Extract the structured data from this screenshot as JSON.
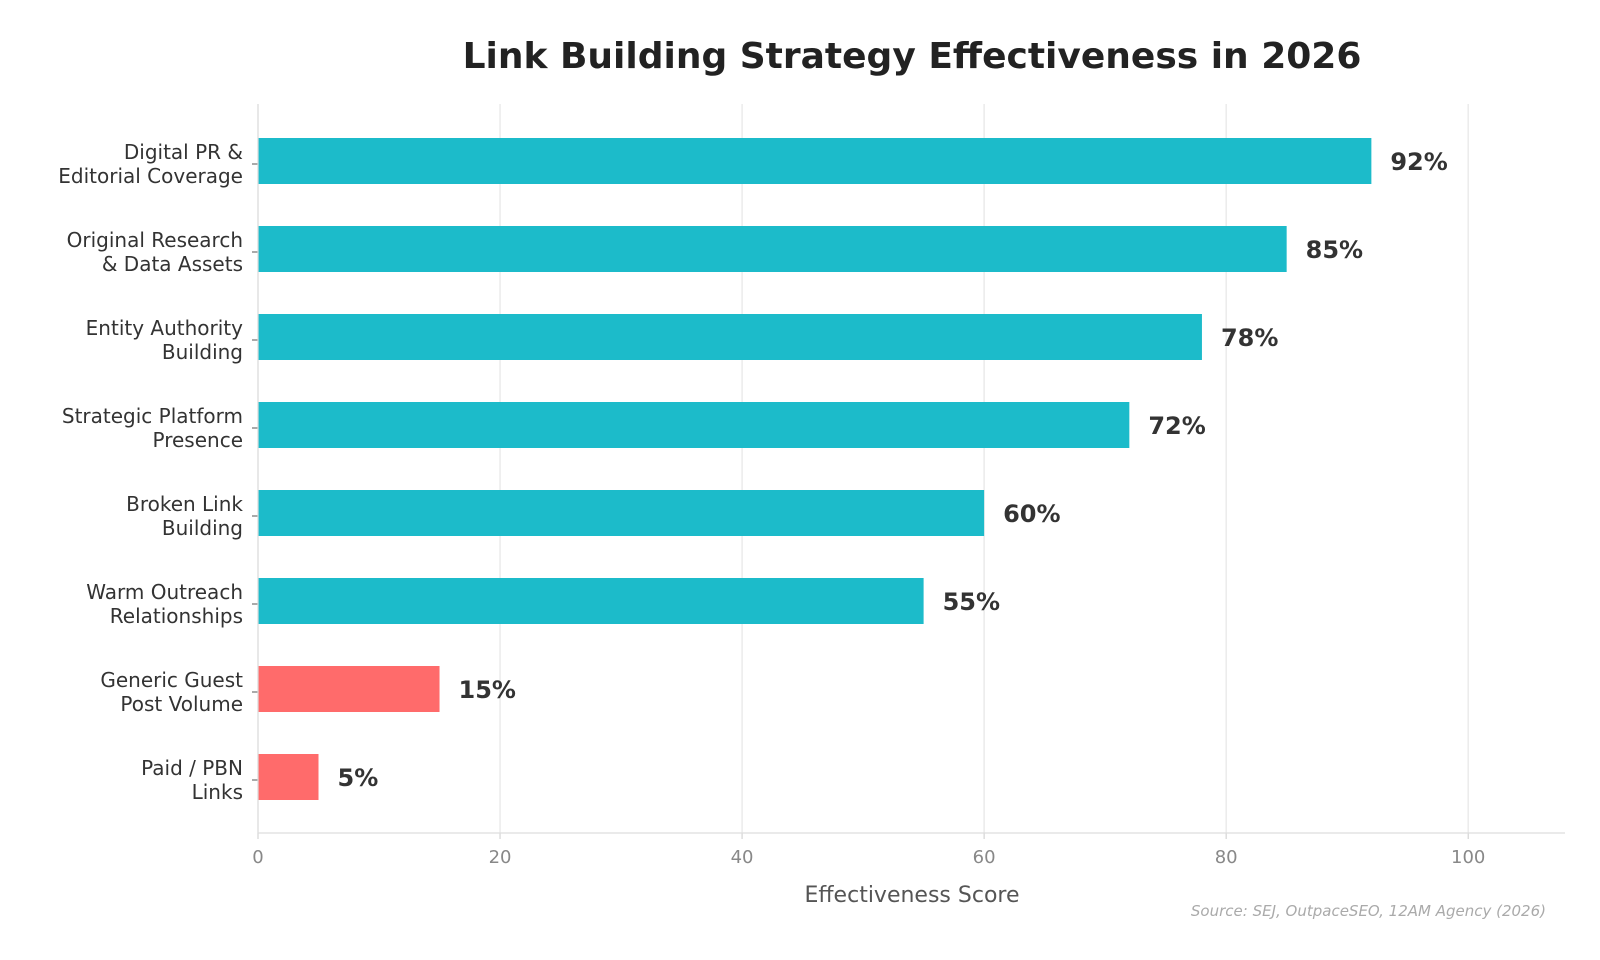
{
  "chart_data": {
    "type": "bar",
    "orientation": "horizontal",
    "title": "Link Building Strategy Effectiveness in 2026",
    "xlabel": "Effectiveness Score",
    "ylabel": "",
    "xlim": [
      0,
      108
    ],
    "xticks": [
      0,
      20,
      40,
      60,
      80,
      100
    ],
    "grid": true,
    "legend": "none",
    "categories": [
      [
        "Digital PR &",
        "Editorial Coverage"
      ],
      [
        "Original Research",
        "& Data Assets"
      ],
      [
        "Entity Authority",
        "Building"
      ],
      [
        "Strategic Platform",
        "Presence"
      ],
      [
        "Broken Link",
        "Building"
      ],
      [
        "Warm Outreach",
        "Relationships"
      ],
      [
        "Generic Guest",
        "Post Volume"
      ],
      [
        "Paid / PBN",
        "Links"
      ]
    ],
    "values": [
      92,
      85,
      78,
      72,
      60,
      55,
      15,
      5
    ],
    "value_labels": [
      "92%",
      "85%",
      "78%",
      "72%",
      "60%",
      "55%",
      "15%",
      "5%"
    ],
    "bar_colors": [
      "#1cbbca",
      "#1cbbca",
      "#1cbbca",
      "#1cbbca",
      "#1cbbca",
      "#1cbbca",
      "#ff6b6b",
      "#ff6b6b"
    ],
    "source": "Source: SEJ, OutpaceSEO, 12AM Agency (2026)"
  },
  "colors": {
    "positive": "#1cbbca",
    "negative": "#ff6b6b",
    "grid": "#e6e6e6"
  }
}
